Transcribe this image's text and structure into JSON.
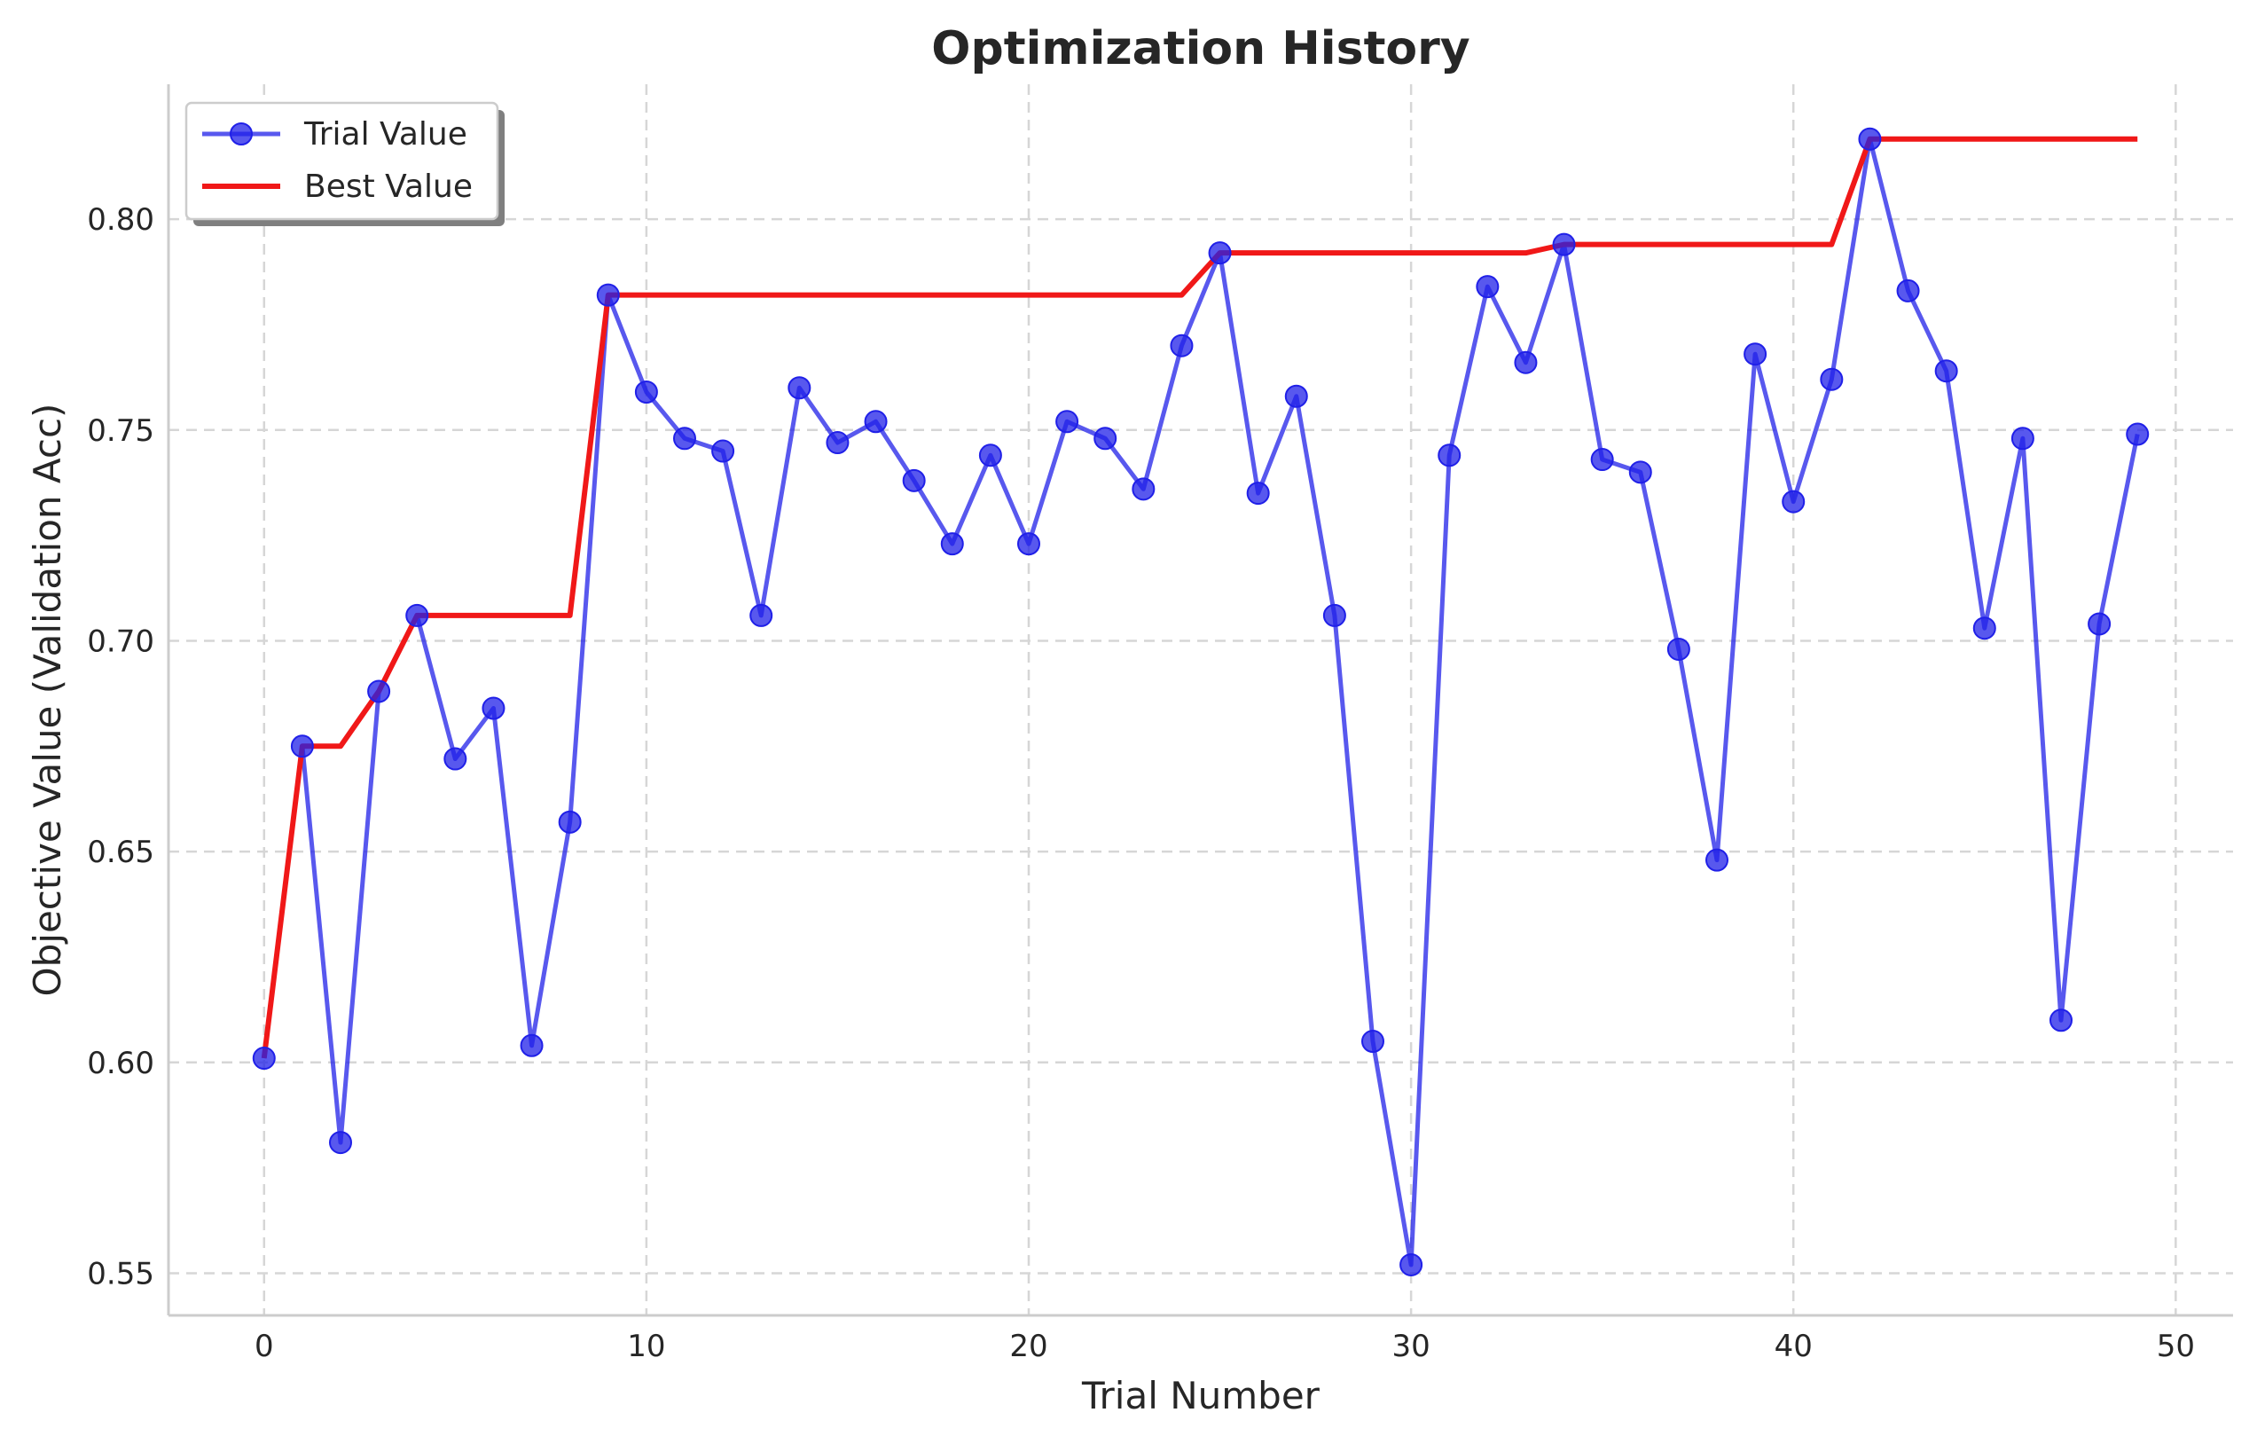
{
  "chart_data": {
    "type": "line",
    "title": "Optimization History",
    "xlabel": "Trial Number",
    "ylabel": "Objective Value (Validation Acc)",
    "xlim": [
      -2.5,
      51.5
    ],
    "ylim": [
      0.54,
      0.832
    ],
    "xticks": [
      0,
      10,
      20,
      30,
      40,
      50
    ],
    "yticks": [
      0.55,
      0.6,
      0.65,
      0.7,
      0.75,
      0.8
    ],
    "xtick_labels": [
      "0",
      "10",
      "20",
      "30",
      "40",
      "50"
    ],
    "ytick_labels": [
      "0.55",
      "0.60",
      "0.65",
      "0.70",
      "0.75",
      "0.80"
    ],
    "grid": true,
    "legend_position": "top-left",
    "series": [
      {
        "name": "Trial Value",
        "color": "#2020e8",
        "marker": "circle",
        "x": [
          0,
          1,
          2,
          3,
          4,
          5,
          6,
          7,
          8,
          9,
          10,
          11,
          12,
          13,
          14,
          15,
          16,
          17,
          18,
          19,
          20,
          21,
          22,
          23,
          24,
          25,
          26,
          27,
          28,
          29,
          30,
          31,
          32,
          33,
          34,
          35,
          36,
          37,
          38,
          39,
          40,
          41,
          42,
          43,
          44,
          45,
          46,
          47,
          48,
          49
        ],
        "values": [
          0.601,
          0.675,
          0.581,
          0.688,
          0.706,
          0.672,
          0.684,
          0.604,
          0.657,
          0.782,
          0.759,
          0.748,
          0.745,
          0.706,
          0.76,
          0.747,
          0.752,
          0.738,
          0.723,
          0.744,
          0.723,
          0.752,
          0.748,
          0.736,
          0.77,
          0.792,
          0.735,
          0.758,
          0.706,
          0.605,
          0.552,
          0.744,
          0.784,
          0.766,
          0.794,
          0.743,
          0.74,
          0.698,
          0.648,
          0.768,
          0.733,
          0.762,
          0.819,
          0.783,
          0.764,
          0.703,
          0.748,
          0.61,
          0.704,
          0.749
        ]
      },
      {
        "name": "Best Value",
        "color": "#f01818",
        "marker": "none",
        "x": [
          0,
          1,
          2,
          3,
          4,
          5,
          6,
          7,
          8,
          9,
          10,
          11,
          12,
          13,
          14,
          15,
          16,
          17,
          18,
          19,
          20,
          21,
          22,
          23,
          24,
          25,
          26,
          27,
          28,
          29,
          30,
          31,
          32,
          33,
          34,
          35,
          36,
          37,
          38,
          39,
          40,
          41,
          42,
          43,
          44,
          45,
          46,
          47,
          48,
          49
        ],
        "values": [
          0.601,
          0.675,
          0.675,
          0.688,
          0.706,
          0.706,
          0.706,
          0.706,
          0.706,
          0.782,
          0.782,
          0.782,
          0.782,
          0.782,
          0.782,
          0.782,
          0.782,
          0.782,
          0.782,
          0.782,
          0.782,
          0.782,
          0.782,
          0.782,
          0.782,
          0.792,
          0.792,
          0.792,
          0.792,
          0.792,
          0.792,
          0.792,
          0.792,
          0.792,
          0.794,
          0.794,
          0.794,
          0.794,
          0.794,
          0.794,
          0.794,
          0.794,
          0.819,
          0.819,
          0.819,
          0.819,
          0.819,
          0.819,
          0.819,
          0.819
        ]
      }
    ]
  }
}
